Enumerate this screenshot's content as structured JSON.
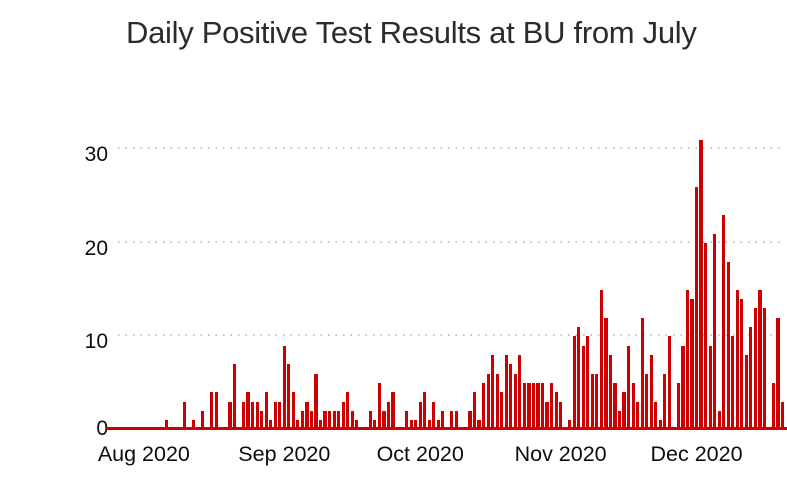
{
  "title": "Daily Positive Test Results at BU from July",
  "chart_data": {
    "type": "bar",
    "title": "Daily Positive Test Results at BU from July",
    "xlabel": "",
    "ylabel": "",
    "y_ticks": [
      "0",
      "10",
      "20",
      "30"
    ],
    "ylim": [
      0,
      33
    ],
    "x_tick_labels": [
      "Aug 2020",
      "Sep 2020",
      "Oct 2020",
      "Nov 2020",
      "Dec 2020"
    ],
    "x_tick_day_indices": [
      9,
      40,
      70,
      101,
      131
    ],
    "grid": "horizontal dotted lines at 10, 20, 30",
    "legend_position": "none",
    "bar_color": "#cc0000",
    "axis_line_color": "#cc0000",
    "values": [
      0,
      0,
      0,
      0,
      0,
      0,
      0,
      0,
      0,
      0,
      0,
      0,
      0,
      0,
      1,
      0,
      0,
      0,
      3,
      0,
      1,
      0,
      2,
      0,
      4,
      4,
      0,
      0,
      3,
      7,
      0,
      3,
      4,
      3,
      3,
      2,
      4,
      1,
      3,
      3,
      9,
      7,
      4,
      1,
      2,
      3,
      2,
      6,
      1,
      2,
      2,
      2,
      2,
      3,
      4,
      2,
      1,
      0,
      0,
      2,
      1,
      5,
      2,
      3,
      4,
      0,
      0,
      2,
      1,
      1,
      3,
      4,
      1,
      3,
      1,
      2,
      0,
      2,
      2,
      0,
      0,
      2,
      4,
      1,
      5,
      6,
      8,
      6,
      4,
      8,
      7,
      6,
      8,
      5,
      5,
      5,
      5,
      5,
      3,
      5,
      4,
      3,
      0,
      1,
      10,
      11,
      9,
      10,
      6,
      6,
      15,
      12,
      8,
      5,
      2,
      4,
      9,
      5,
      3,
      12,
      6,
      8,
      3,
      1,
      6,
      10,
      0,
      5,
      9,
      15,
      14,
      26,
      31,
      20,
      9,
      21,
      2,
      23,
      18,
      10,
      15,
      14,
      8,
      11,
      13,
      15,
      13,
      0,
      5,
      12,
      3
    ]
  },
  "colors": {
    "background": "#ffffff",
    "title_text": "#2b2b2b",
    "axis_text": "#0d0d0d",
    "gridline": "#c6c6c6",
    "bar": "#cc0000"
  }
}
